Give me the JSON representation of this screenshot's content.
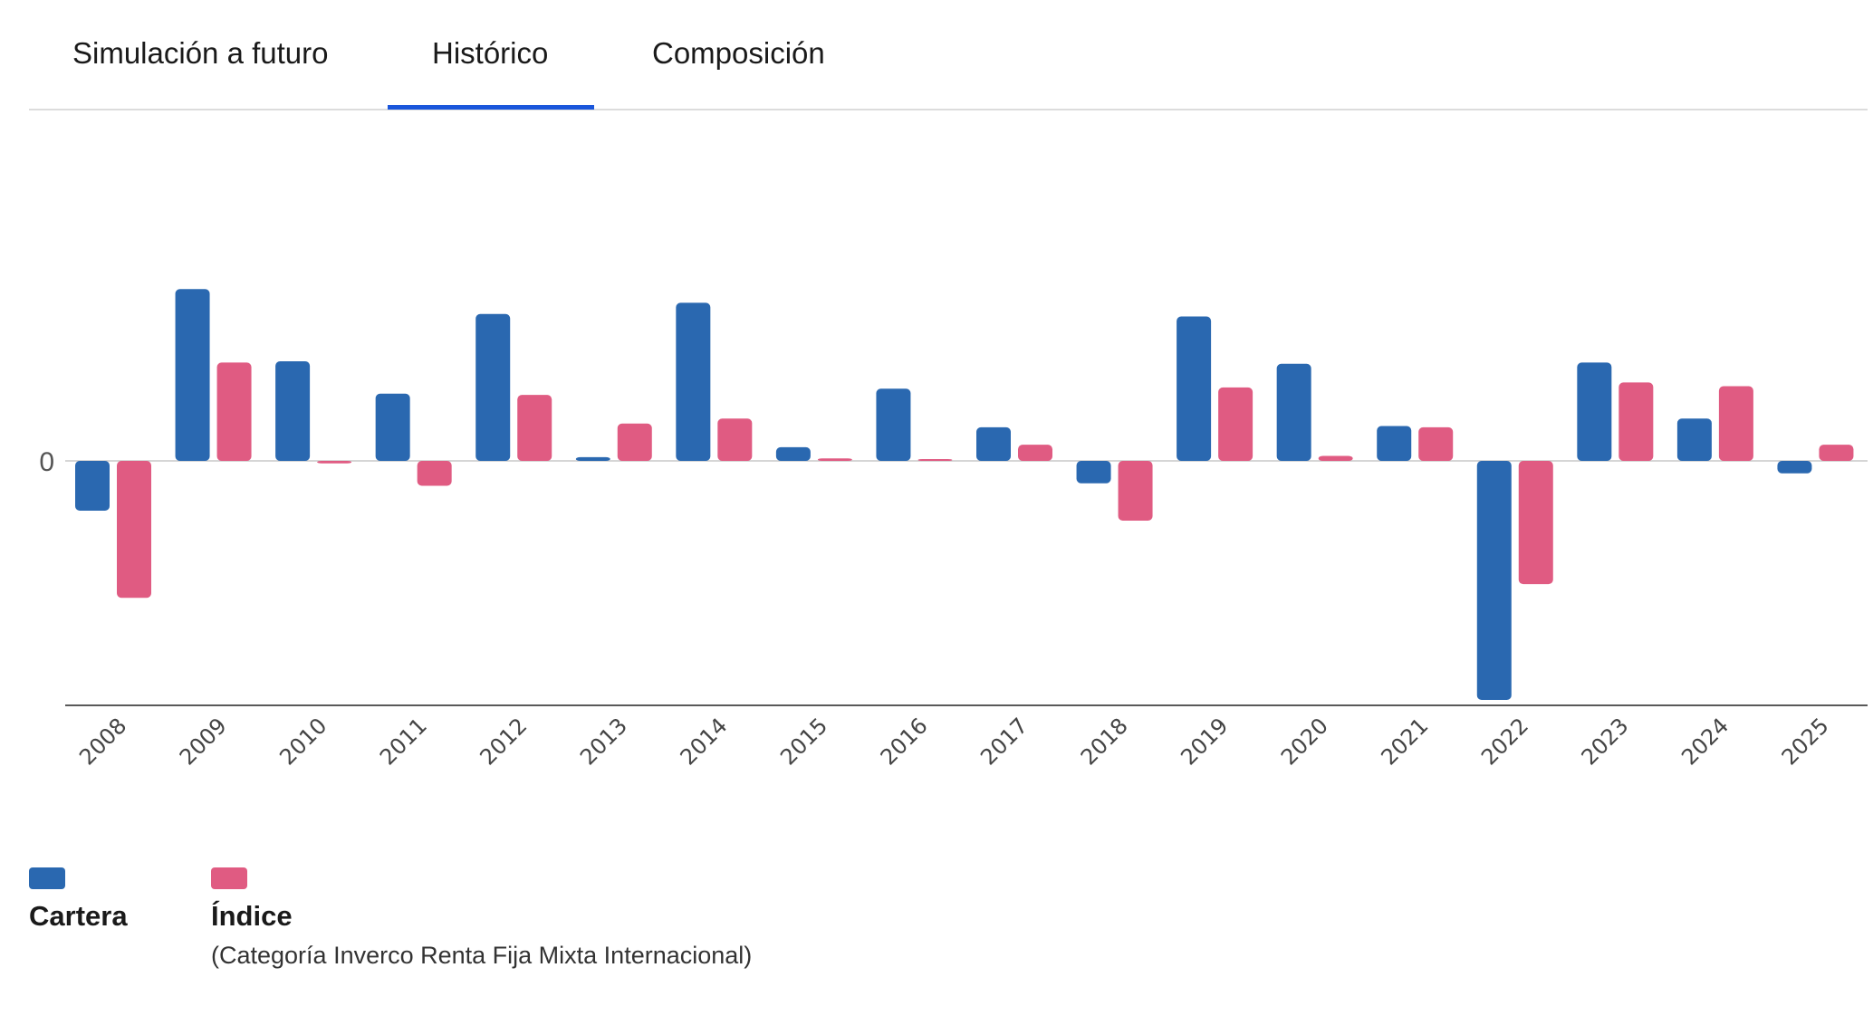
{
  "tabs": [
    {
      "label": "Simulación a futuro",
      "active": false
    },
    {
      "label": "Histórico",
      "active": true
    },
    {
      "label": "Composición",
      "active": false
    }
  ],
  "accent_color": "#1a56db",
  "chart_data": {
    "type": "bar",
    "title": "",
    "xlabel": "",
    "ylabel": "",
    "y_tick_labels": [
      "0"
    ],
    "categories": [
      "2008",
      "2009",
      "2010",
      "2011",
      "2012",
      "2013",
      "2014",
      "2015",
      "2016",
      "2017",
      "2018",
      "2019",
      "2020",
      "2021",
      "2022",
      "2023",
      "2024",
      "2025"
    ],
    "series": [
      {
        "name": "Cartera",
        "color": "#2a68b0",
        "values": [
          -4.0,
          13.8,
          8.0,
          5.4,
          11.8,
          0.3,
          12.7,
          1.1,
          5.8,
          2.7,
          -1.8,
          11.6,
          7.8,
          2.8,
          -19.2,
          7.9,
          3.4,
          -1.0
        ]
      },
      {
        "name": "Índice",
        "color": "#e05b82",
        "values": [
          -11.0,
          7.9,
          -0.2,
          -2.0,
          5.3,
          3.0,
          3.4,
          0.2,
          0.0,
          1.3,
          -4.8,
          5.9,
          0.4,
          2.7,
          -9.9,
          6.3,
          6.0,
          1.3
        ]
      }
    ],
    "ylim": [
      -20,
      20
    ],
    "grid": false,
    "legend_position": "bottom-left"
  },
  "legend": {
    "items": [
      {
        "label": "Cartera",
        "subtitle": "",
        "color": "#2a68b0"
      },
      {
        "label": "Índice",
        "subtitle": "(Categoría Inverco Renta Fija Mixta Internacional)",
        "color": "#e05b82"
      }
    ]
  }
}
